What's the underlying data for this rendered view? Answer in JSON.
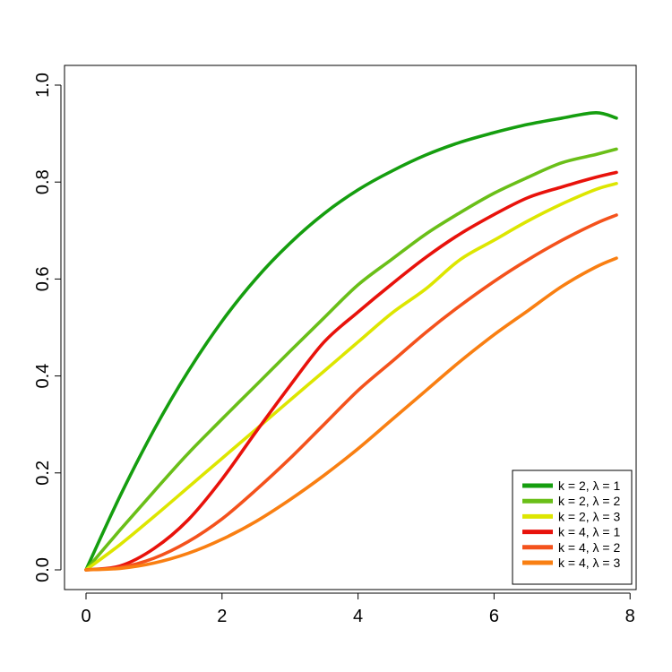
{
  "chart_data": {
    "type": "line",
    "title": "",
    "xlabel": "",
    "ylabel": "",
    "xlim": [
      0,
      7.8
    ],
    "ylim": [
      0,
      1
    ],
    "x_ticks": [
      {
        "value": 0,
        "label": "0"
      },
      {
        "value": 2,
        "label": "2"
      },
      {
        "value": 4,
        "label": "4"
      },
      {
        "value": 6,
        "label": "6"
      },
      {
        "value": 8,
        "label": "8"
      }
    ],
    "y_ticks": [
      {
        "value": 0,
        "label": "0.0"
      },
      {
        "value": 0.2,
        "label": "0.2"
      },
      {
        "value": 0.4,
        "label": "0.4"
      },
      {
        "value": 0.6,
        "label": "0.6"
      },
      {
        "value": 0.8,
        "label": "0.8"
      },
      {
        "value": 1,
        "label": "1.0"
      }
    ],
    "grid": false,
    "legend_position": "bottom-right",
    "x": [
      0,
      0.5,
      1,
      1.5,
      2,
      2.5,
      3,
      3.5,
      4,
      4.5,
      5,
      5.5,
      6,
      6.5,
      7,
      7.5,
      7.8
    ],
    "series": [
      {
        "name": "k = 2, λ = 1",
        "color": "#159e0f",
        "values": [
          0,
          0.152,
          0.289,
          0.409,
          0.513,
          0.601,
          0.674,
          0.735,
          0.784,
          0.823,
          0.856,
          0.882,
          0.902,
          0.919,
          0.932,
          0.943,
          0.932
        ]
      },
      {
        "name": "k = 2, λ = 2",
        "color": "#6abf18",
        "values": [
          0,
          0.082,
          0.162,
          0.24,
          0.311,
          0.381,
          0.451,
          0.52,
          0.588,
          0.641,
          0.693,
          0.737,
          0.777,
          0.81,
          0.84,
          0.857,
          0.868
        ]
      },
      {
        "name": "k = 2, λ = 3",
        "color": "#dde600",
        "values": [
          0,
          0.052,
          0.11,
          0.17,
          0.23,
          0.29,
          0.35,
          0.41,
          0.47,
          0.53,
          0.58,
          0.64,
          0.68,
          0.72,
          0.755,
          0.785,
          0.797
        ]
      },
      {
        "name": "k = 4, λ = 1",
        "color": "#e8120b",
        "values": [
          0,
          0.008,
          0.044,
          0.103,
          0.187,
          0.285,
          0.38,
          0.47,
          0.532,
          0.59,
          0.645,
          0.693,
          0.733,
          0.768,
          0.79,
          0.81,
          0.82
        ]
      },
      {
        "name": "k = 4, λ = 2",
        "color": "#f4521c",
        "values": [
          0,
          0.005,
          0.024,
          0.058,
          0.105,
          0.165,
          0.23,
          0.3,
          0.37,
          0.43,
          0.49,
          0.545,
          0.595,
          0.64,
          0.68,
          0.715,
          0.732
        ]
      },
      {
        "name": "k = 4, λ = 3",
        "color": "#f97f12",
        "values": [
          0,
          0.003,
          0.014,
          0.034,
          0.063,
          0.1,
          0.145,
          0.195,
          0.25,
          0.31,
          0.37,
          0.43,
          0.485,
          0.535,
          0.585,
          0.625,
          0.643
        ]
      }
    ]
  }
}
